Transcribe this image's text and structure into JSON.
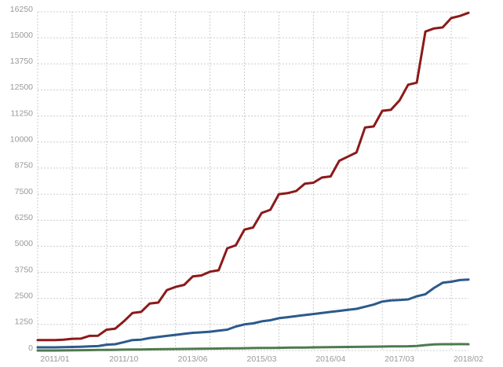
{
  "chart_data": {
    "type": "line",
    "categories": [
      null,
      null,
      "2011/01",
      null,
      null,
      null,
      null,
      null,
      null,
      null,
      "2011/10",
      null,
      null,
      null,
      null,
      null,
      null,
      null,
      "2013/06",
      null,
      null,
      null,
      null,
      null,
      null,
      null,
      "2015/03",
      null,
      null,
      null,
      null,
      null,
      null,
      null,
      "2016/04",
      null,
      null,
      null,
      null,
      null,
      null,
      null,
      "2017/03",
      null,
      null,
      null,
      null,
      null,
      null,
      null,
      "2018/02"
    ],
    "series": [
      {
        "color": "#8b1a1a",
        "values": [
          500,
          500,
          500,
          520,
          560,
          570,
          700,
          710,
          1000,
          1050,
          1400,
          1800,
          1850,
          2250,
          2300,
          2900,
          3050,
          3150,
          3550,
          3600,
          3780,
          3850,
          4900,
          5050,
          5800,
          5900,
          6600,
          6750,
          7500,
          7550,
          7650,
          8000,
          8050,
          8300,
          8350,
          9100,
          9300,
          9500,
          10700,
          10750,
          11500,
          11550,
          12000,
          12750,
          12850,
          15300,
          15450,
          15500,
          15950,
          16050,
          16200
        ]
      },
      {
        "color": "#2c5a8c",
        "values": [
          150,
          150,
          150,
          160,
          170,
          180,
          200,
          210,
          280,
          300,
          400,
          500,
          520,
          600,
          650,
          700,
          750,
          800,
          850,
          870,
          900,
          950,
          1000,
          1150,
          1250,
          1300,
          1400,
          1450,
          1550,
          1600,
          1650,
          1700,
          1750,
          1800,
          1850,
          1900,
          1950,
          2000,
          2100,
          2200,
          2350,
          2400,
          2420,
          2450,
          2600,
          2700,
          3000,
          3250,
          3300,
          3380,
          3400
        ]
      },
      {
        "color": "#4e7a4e",
        "values": [
          0,
          0,
          0,
          5,
          10,
          15,
          20,
          25,
          30,
          35,
          40,
          45,
          50,
          55,
          60,
          65,
          70,
          75,
          80,
          85,
          90,
          95,
          100,
          105,
          110,
          115,
          120,
          125,
          130,
          135,
          140,
          145,
          150,
          155,
          160,
          165,
          170,
          175,
          180,
          185,
          190,
          195,
          200,
          205,
          220,
          260,
          290,
          300,
          300,
          305,
          300
        ]
      }
    ],
    "ylim": [
      0,
      16250
    ],
    "yticks": [
      0,
      1250,
      2500,
      3750,
      5000,
      6250,
      7500,
      8750,
      10000,
      11250,
      12500,
      13750,
      15000,
      16250
    ],
    "grid": true
  }
}
